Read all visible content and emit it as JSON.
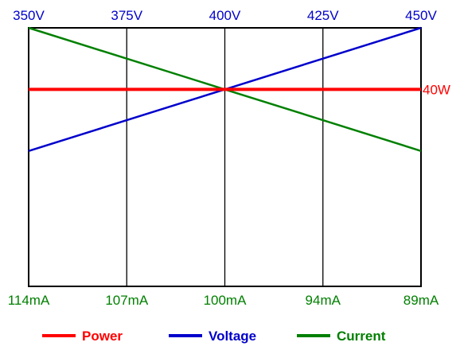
{
  "chart_data": {
    "type": "line",
    "x": [
      0,
      1,
      2,
      3,
      4
    ],
    "top_ticks": [
      "350V",
      "375V",
      "400V",
      "425V",
      "450V"
    ],
    "bottom_ticks": [
      "114mA",
      "107mA",
      "100mA",
      "94mA",
      "89mA"
    ],
    "series": [
      {
        "name": "Power",
        "color": "#ff0000",
        "values": [
          40,
          40,
          40,
          40,
          40
        ]
      },
      {
        "name": "Voltage",
        "color": "#0000cc",
        "values": [
          27.5,
          33.75,
          40,
          46.25,
          52.5
        ]
      },
      {
        "name": "Current",
        "color": "#008000",
        "values": [
          52.5,
          46.25,
          40,
          33.75,
          27.5
        ]
      }
    ],
    "annotations": [
      {
        "text": "40W",
        "y": 40,
        "color": "#ff0000"
      }
    ],
    "ylim": [
      0,
      52.5
    ],
    "grid": "vertical",
    "legend": "bottom",
    "colors": {
      "top_tick": "#0000cc",
      "bottom_tick": "#008000",
      "frame": "#000000"
    }
  }
}
